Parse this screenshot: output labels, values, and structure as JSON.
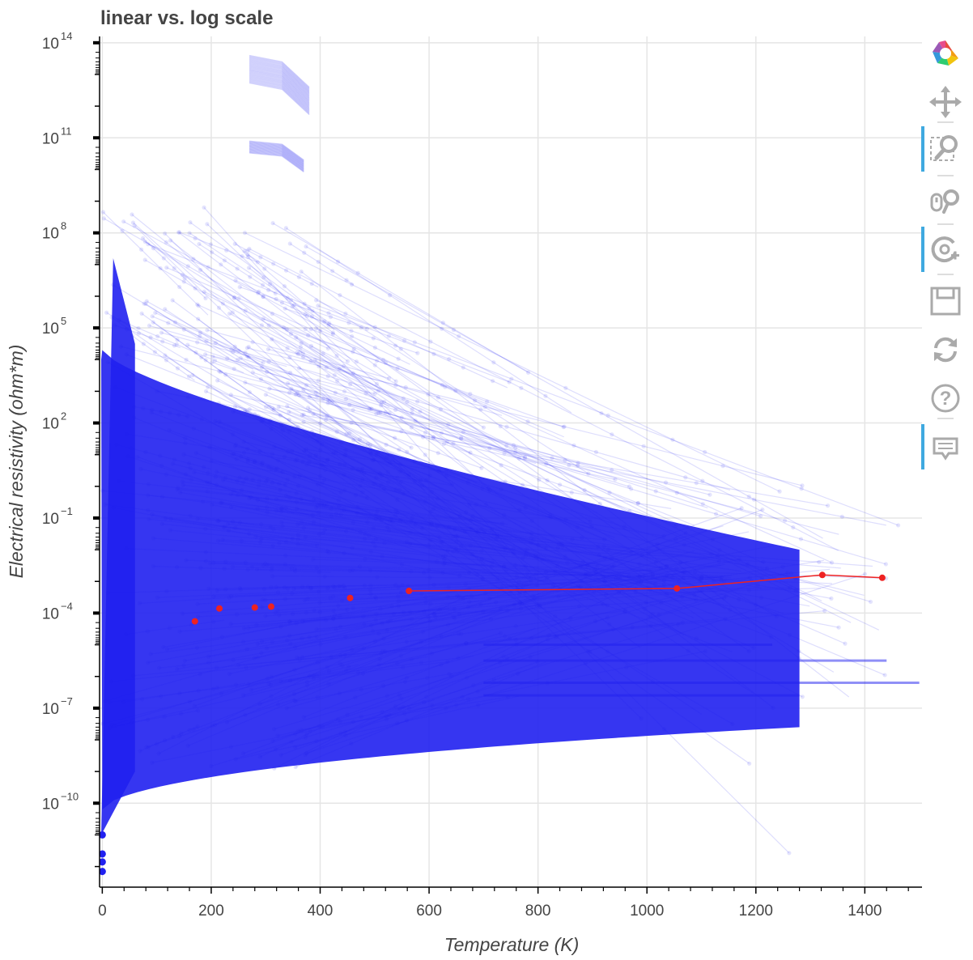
{
  "chart_data": {
    "type": "scatter",
    "title": "linear vs. log scale",
    "xlabel": "Temperature (K)",
    "ylabel": "Electrical resistivity (ohm*m)",
    "xlim": [
      -5,
      1505
    ],
    "ylim_log10": [
      -12.65,
      14.2
    ],
    "yscale": "log",
    "grid": true,
    "x_ticks": [
      0,
      200,
      400,
      600,
      800,
      1000,
      1200,
      1400
    ],
    "x_tick_labels": [
      "0",
      "200",
      "400",
      "600",
      "800",
      "1000",
      "1200",
      "1400"
    ],
    "y_ticks_exponent": [
      -10,
      -7,
      -4,
      -1,
      2,
      5,
      8,
      11,
      14
    ],
    "y_tick_labels": [
      "10",
      "10",
      "10",
      "10",
      "10",
      "10",
      "10",
      "10",
      "10"
    ],
    "y_tick_exponents": [
      "−10",
      "−7",
      "−4",
      "−1",
      "2",
      "5",
      "8",
      "11",
      "14"
    ],
    "series": [
      {
        "color": "#2020f0",
        "style": "many translucent lines with markers (dense cloud of curves)",
        "x": [
          0,
          0,
          0,
          0
        ],
        "y": [
          1e-11,
          2.5e-12,
          1.4e-12,
          7e-13
        ]
      },
      {
        "color": "#ee2222",
        "style": "highlighted line with markers",
        "x": [
          170,
          215,
          280,
          310,
          455,
          563,
          1055,
          1322,
          1432
        ],
        "y": [
          5.5e-05,
          0.00014,
          0.00015,
          0.00016,
          0.0003,
          0.0005,
          0.0006,
          0.0016,
          0.0013
        ]
      }
    ]
  },
  "toolbar": {
    "items": [
      {
        "name": "bokeh-logo-icon",
        "active": false
      },
      {
        "name": "pan-icon",
        "active": false
      },
      {
        "name": "box-zoom-icon",
        "active": true
      },
      {
        "name": "wheel-zoom-icon",
        "active": false
      },
      {
        "name": "reset-zoom-icon",
        "active": true
      },
      {
        "name": "save-icon",
        "active": false
      },
      {
        "name": "reset-icon",
        "active": false
      },
      {
        "name": "help-icon",
        "active": false
      },
      {
        "name": "hover-icon",
        "active": true
      }
    ]
  },
  "colors": {
    "cloud": "#2020f0",
    "highlight": "#ee2222",
    "grid": "#e5e5e5",
    "toolbar_active": "#3fa9e0",
    "icon": "#aaaaaa"
  }
}
